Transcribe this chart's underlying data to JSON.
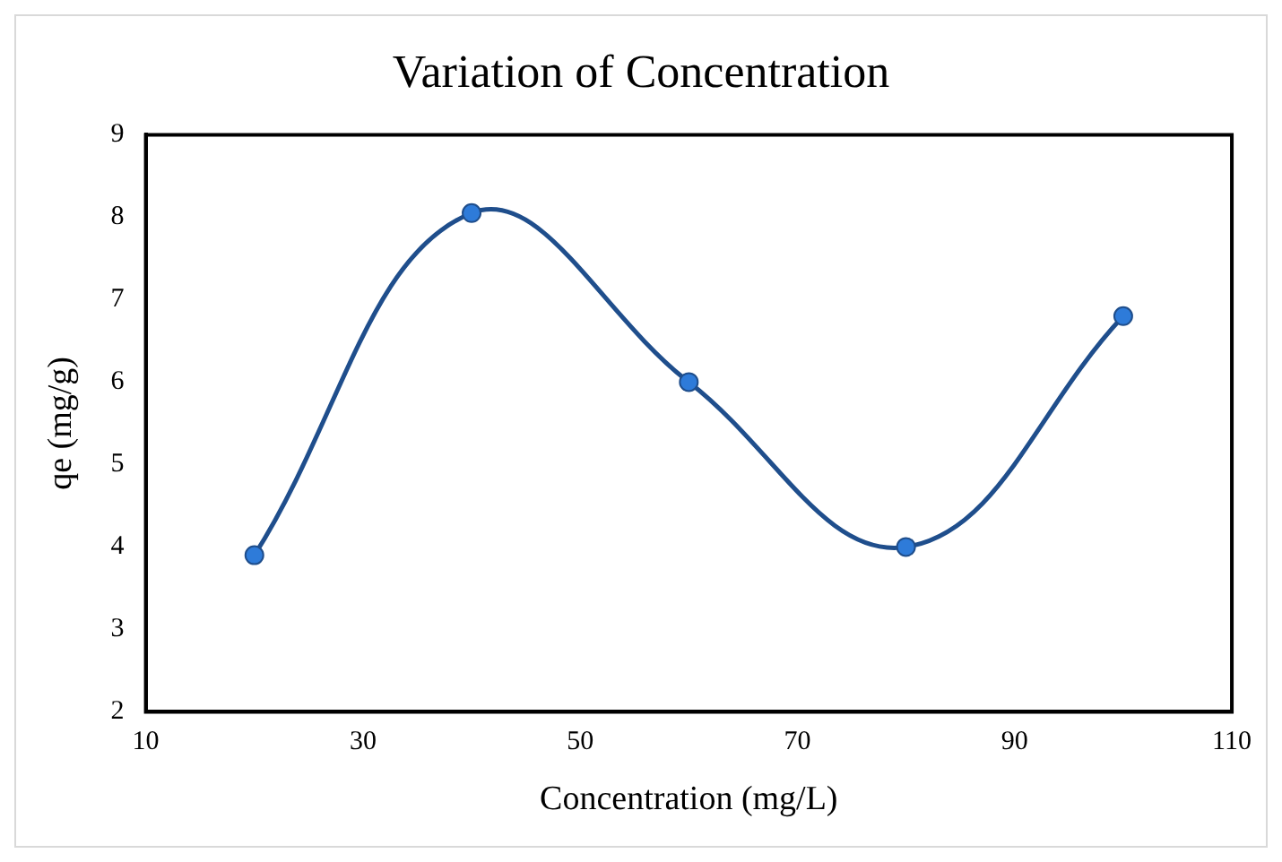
{
  "chart_data": {
    "type": "line",
    "title": "Variation of Concentration",
    "xlabel": "Concentration (mg/L)",
    "ylabel": "qe (mg/g)",
    "x": [
      20,
      40,
      60,
      80,
      100
    ],
    "series": [
      {
        "color": "#1f4e8c",
        "values": [
          3.9,
          8.05,
          6.0,
          4.0,
          6.8
        ]
      }
    ],
    "xlim": [
      10,
      110
    ],
    "xticks": [
      10,
      30,
      50,
      70,
      90,
      110
    ],
    "ylim": [
      2,
      9
    ],
    "yticks": [
      2,
      3,
      4,
      5,
      6,
      7,
      8,
      9
    ],
    "grid": false,
    "legend": false,
    "marker": "circle",
    "line_style": "solid"
  }
}
